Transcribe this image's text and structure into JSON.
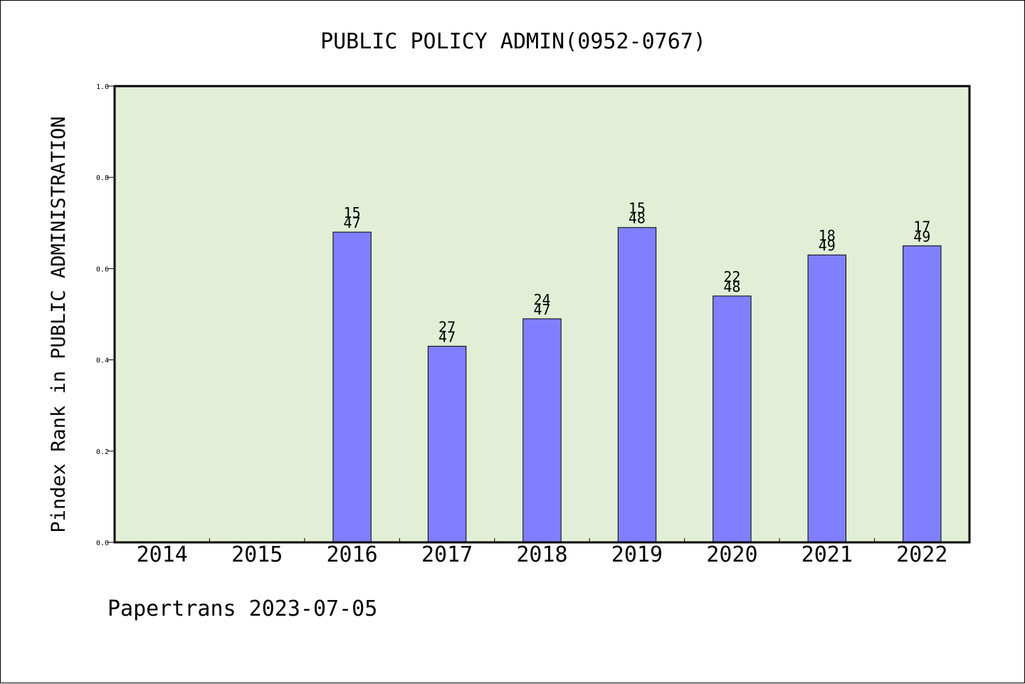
{
  "chart_data": {
    "type": "bar",
    "title": "PUBLIC POLICY ADMIN(0952-0767)",
    "xlabel": "",
    "ylabel": "Pindex Rank in PUBLIC ADMINISTRATION",
    "categories": [
      "2014",
      "2015",
      "2016",
      "2017",
      "2018",
      "2019",
      "2020",
      "2021",
      "2022"
    ],
    "values": [
      null,
      null,
      0.68,
      0.43,
      0.49,
      0.69,
      0.54,
      0.63,
      0.65
    ],
    "rank": [
      null,
      null,
      "15",
      "27",
      "24",
      "15",
      "22",
      "18",
      "17"
    ],
    "total": [
      null,
      null,
      "47",
      "47",
      "47",
      "48",
      "48",
      "49",
      "49"
    ],
    "ylim": [
      0,
      1.0
    ],
    "yticks": [
      "0.0",
      "0.2",
      "0.4",
      "0.6",
      "0.8",
      "1.0"
    ],
    "grid": false,
    "colors": {
      "bar": "#8080ff",
      "plot_background": "#e2efd6"
    }
  },
  "footer": "Papertrans 2023-07-05"
}
